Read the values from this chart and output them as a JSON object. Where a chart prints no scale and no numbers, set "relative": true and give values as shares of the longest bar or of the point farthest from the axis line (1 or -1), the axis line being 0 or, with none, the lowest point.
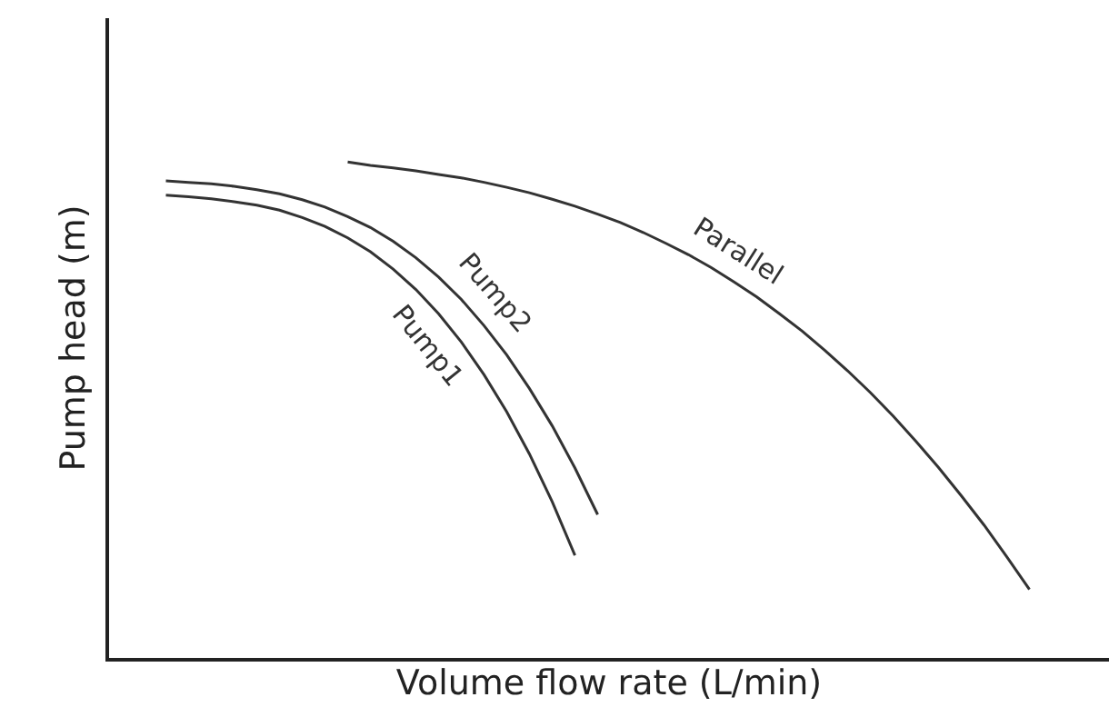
{
  "chart_data": {
    "type": "line",
    "relative": true,
    "xlabel": "Volume flow rate (L/min)",
    "ylabel": "Pump head (m)",
    "legend": false,
    "marker": "none",
    "line_style": "solid",
    "tick_labels": false,
    "categories": [
      null,
      null,
      null,
      null,
      null,
      null,
      null,
      null,
      null,
      null,
      null,
      null,
      null,
      null,
      null,
      null,
      null,
      null,
      null,
      null,
      null,
      null,
      null,
      null,
      null,
      null,
      null,
      null,
      null,
      null,
      null,
      null,
      null,
      null,
      null,
      null,
      null,
      null,
      null,
      null,
      null,
      null,
      null,
      null
    ],
    "series": [
      {
        "name": "Pump1",
        "color": "#333333",
        "values": [
          null,
          null,
          0.933,
          0.93,
          0.926,
          0.92,
          0.913,
          0.903,
          0.888,
          0.87,
          0.847,
          0.819,
          0.784,
          0.743,
          0.694,
          0.637,
          0.571,
          0.496,
          0.411,
          0.315,
          0.207,
          null,
          null,
          null,
          null,
          null,
          null,
          null,
          null,
          null,
          null,
          null,
          null,
          null,
          null,
          null,
          null,
          null,
          null,
          null,
          null,
          null,
          null,
          null
        ]
      },
      {
        "name": "Pump2",
        "color": "#333333",
        "values": [
          null,
          null,
          0.962,
          0.959,
          0.956,
          0.951,
          0.944,
          0.936,
          0.924,
          0.909,
          0.89,
          0.868,
          0.84,
          0.807,
          0.768,
          0.723,
          0.67,
          0.611,
          0.543,
          0.468,
          0.383,
          0.289,
          null,
          null,
          null,
          null,
          null,
          null,
          null,
          null,
          null,
          null,
          null,
          null,
          null,
          null,
          null,
          null,
          null,
          null,
          null,
          null,
          null,
          null
        ]
      },
      {
        "name": "Parallel",
        "color": "#333333",
        "values": [
          null,
          null,
          null,
          null,
          null,
          null,
          null,
          null,
          null,
          null,
          1.0,
          0.993,
          0.988,
          0.982,
          0.975,
          0.968,
          0.959,
          0.949,
          0.938,
          0.925,
          0.911,
          0.895,
          0.878,
          0.858,
          0.836,
          0.813,
          0.787,
          0.758,
          0.728,
          0.694,
          0.659,
          0.62,
          0.579,
          0.535,
          0.488,
          0.437,
          0.384,
          0.327,
          0.268,
          0.204,
          0.138,
          null,
          null,
          null
        ]
      }
    ]
  }
}
